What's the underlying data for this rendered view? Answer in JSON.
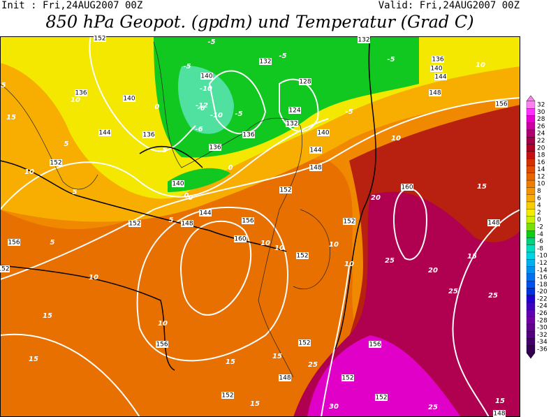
{
  "header": {
    "init": "Init : Fri,24AUG2007 00Z",
    "valid": "Valid: Fri,24AUG2007 00Z",
    "title": "850 hPa Geopot. (gpdm) und Temperatur (Grad C)"
  },
  "colorbar": {
    "ticks": [
      32,
      30,
      28,
      26,
      24,
      22,
      20,
      18,
      16,
      14,
      12,
      10,
      8,
      6,
      4,
      2,
      0,
      -2,
      -4,
      -6,
      -8,
      -10,
      -12,
      -14,
      -16,
      -18,
      -20,
      -22,
      -24,
      -26,
      -28,
      -30,
      -32,
      -34,
      -36
    ],
    "colors": [
      "#ff80f0",
      "#ff30ff",
      "#e800d0",
      "#cc00a0",
      "#b00070",
      "#a00048",
      "#b00024",
      "#c41010",
      "#d43000",
      "#e04c00",
      "#e86400",
      "#f07c00",
      "#f49400",
      "#f8ae00",
      "#f8cc00",
      "#f4ec00",
      "#c8f000",
      "#78e000",
      "#10cc10",
      "#00d080",
      "#00e0c0",
      "#00d4e4",
      "#00b0f0",
      "#0090f0",
      "#0070f0",
      "#0050f0",
      "#0030e0",
      "#2000d0",
      "#4000c0",
      "#6000b0",
      "#7000a0",
      "#640090",
      "#540080",
      "#440068",
      "#340050"
    ]
  },
  "geopotential_labels": [
    "152",
    "136",
    "140",
    "144",
    "152",
    "136",
    "140",
    "132",
    "128",
    "124",
    "132",
    "140",
    "144",
    "148",
    "152",
    "156",
    "160",
    "152",
    "148",
    "144",
    "140",
    "152",
    "156",
    "152",
    "156",
    "152",
    "152",
    "148",
    "152",
    "156",
    "152",
    "160",
    "152",
    "148",
    "156",
    "148",
    "144",
    "140",
    "136",
    "132",
    "136",
    "136",
    "148"
  ],
  "temperature_labels": [
    "-5",
    "-10",
    "-12",
    "-10",
    "-6",
    "-5",
    "-5",
    "-5",
    "-5",
    "5",
    "0",
    "0",
    "0",
    "5",
    "10",
    "15",
    "5",
    "5",
    "10",
    "10",
    "10",
    "10",
    "10",
    "10",
    "15",
    "15",
    "20",
    "20",
    "25",
    "25",
    "25",
    "10",
    "10",
    "15",
    "15",
    "15",
    "15",
    "15",
    "25",
    "30",
    "25",
    "15",
    "5",
    "10",
    "-6",
    "-5",
    "0",
    "5"
  ]
}
